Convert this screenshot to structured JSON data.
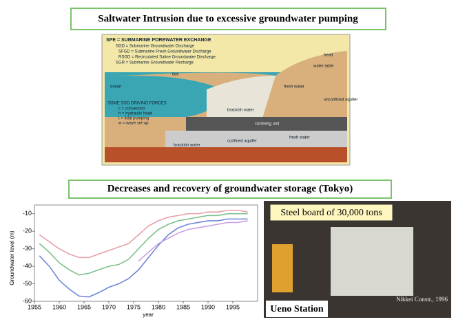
{
  "titles": [
    "Saltwater Intrusion due to excessive groundwater pumping",
    "Decreases and recovery of groundwater storage (Tokyo)"
  ],
  "diagram": {
    "heading": "SPE = SUBMARINE POREWATER EXCHANGE",
    "legend": [
      "SGD = Submarine Groundwater Discharge",
      "SFGD = Submarine Fresh Groundwater Discharge",
      "RSGD = Recirculated Saline Groundwater Discharge",
      "SGR = Submarine Groundwater Recharge"
    ],
    "forces_heading": "SOME SGD DRIVING FORCES",
    "forces": [
      "c = convection",
      "h = hydraulic head",
      "t = tidal pumping",
      "w = wave set-up"
    ],
    "labels": [
      "ocean",
      "tide",
      "head",
      "water table",
      "fresh water",
      "unconfined aquifer",
      "brackish water",
      "confining unit",
      "confined aquifer",
      "fresh water",
      "brackish water"
    ]
  },
  "chart_data": {
    "type": "line",
    "y_label": "Groundwater level (m)",
    "x_label": "year",
    "x": [
      1956,
      1958,
      1960,
      1962,
      1964,
      1966,
      1968,
      1970,
      1972,
      1974,
      1976,
      1978,
      1980,
      1982,
      1984,
      1986,
      1988,
      1990,
      1992,
      1994,
      1996,
      1998
    ],
    "xlim": [
      1955,
      2000
    ],
    "xticks": [
      1955,
      1960,
      1965,
      1970,
      1975,
      1980,
      1985,
      1990,
      1995
    ],
    "ylim": [
      -60,
      -5
    ],
    "yticks": [
      -60,
      -50,
      -40,
      -30,
      -20,
      -10
    ],
    "series": [
      {
        "color": "#e8a0a8",
        "values": [
          -22,
          -26,
          -30,
          -33,
          -35,
          -35,
          -33,
          -31,
          -29,
          -27,
          -22,
          -17,
          -14,
          -12,
          -11,
          -10,
          -10,
          -9,
          -9,
          -8,
          -8,
          -9
        ]
      },
      {
        "color": "#7cc08a",
        "values": [
          -27,
          -32,
          -38,
          -42,
          -45,
          -44,
          -42,
          -40,
          -39,
          -36,
          -30,
          -24,
          -19,
          -16,
          -14,
          -13,
          -12,
          -11,
          -11,
          -10,
          -10,
          -10
        ]
      },
      {
        "color": "#6f86d6",
        "values": [
          -34,
          -40,
          -48,
          -53,
          -57,
          -57.5,
          -55,
          -52,
          -50,
          -47,
          -42,
          -35,
          -28,
          -22,
          -18,
          -16,
          -15,
          -14,
          -14,
          -13,
          -13,
          -13
        ]
      },
      {
        "color": "#c8a0e0",
        "values": [
          null,
          null,
          null,
          null,
          null,
          null,
          null,
          null,
          null,
          null,
          -37,
          -32,
          -27,
          -24,
          -21,
          -19,
          -18,
          -17,
          -16,
          -15,
          -15,
          -14
        ]
      }
    ]
  },
  "photo": {
    "caption": "Steel board of 30,000 tons",
    "place": "Ueno Station",
    "credit": "Nikkei Constr., 1996"
  }
}
